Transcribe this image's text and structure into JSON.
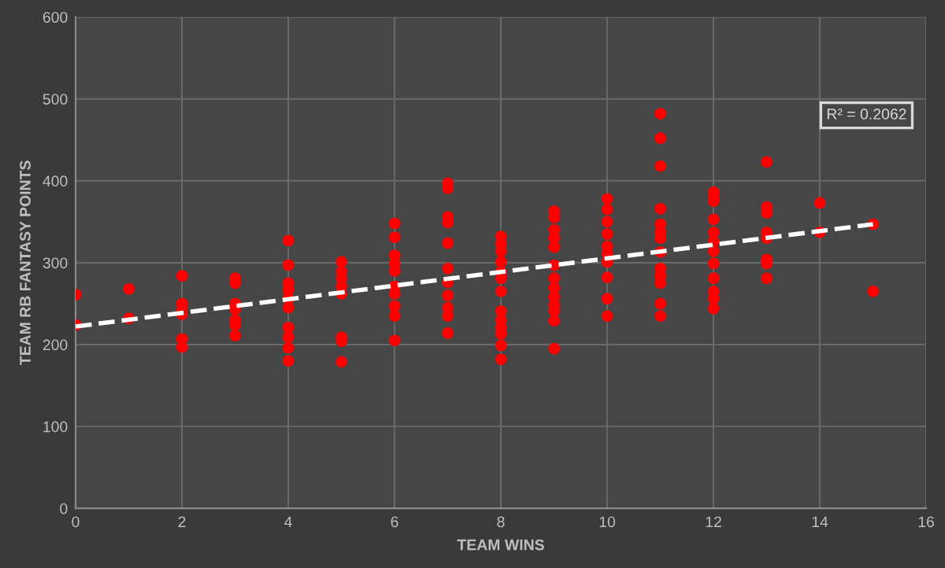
{
  "chart_data": {
    "type": "scatter",
    "xlabel": "TEAM WINS",
    "ylabel": "TEAM RB FANTASY POINTS",
    "xlim": [
      0,
      16
    ],
    "xticks": [
      0,
      2,
      4,
      6,
      8,
      10,
      12,
      14,
      16
    ],
    "ylim": [
      0,
      600
    ],
    "yticks": [
      0,
      100,
      200,
      300,
      400,
      500,
      600
    ],
    "grid": true,
    "marker": "circle",
    "annotations": [
      "R² = 0.2062"
    ],
    "series": [
      {
        "color": "#ff0000",
        "x": [
          0,
          0,
          1,
          1,
          2,
          2,
          2,
          2,
          2,
          2,
          3,
          3,
          3,
          3,
          3,
          3,
          3,
          4,
          4,
          4,
          4,
          4,
          4,
          4,
          4,
          4,
          4,
          5,
          5,
          5,
          5,
          5,
          5,
          5,
          5,
          6,
          6,
          6,
          6,
          6,
          6,
          6,
          6,
          6,
          6,
          7,
          7,
          7,
          7,
          7,
          7,
          7,
          7,
          7,
          7,
          7,
          8,
          8,
          8,
          8,
          8,
          8,
          8,
          8,
          8,
          8,
          8,
          8,
          8,
          9,
          9,
          9,
          9,
          9,
          9,
          9,
          9,
          9,
          9,
          9,
          9,
          9,
          10,
          10,
          10,
          10,
          10,
          10,
          10,
          10,
          10,
          10,
          11,
          11,
          11,
          11,
          11,
          11,
          11,
          11,
          11,
          11,
          11,
          11,
          11,
          12,
          12,
          12,
          12,
          12,
          12,
          12,
          12,
          12,
          12,
          12,
          12,
          13,
          13,
          13,
          13,
          13,
          13,
          13,
          13,
          14,
          14,
          15,
          15
        ],
        "values": [
          261,
          224,
          268,
          232,
          284,
          250,
          242,
          237,
          207,
          197,
          281,
          275,
          250,
          243,
          230,
          224,
          211,
          327,
          297,
          275,
          267,
          256,
          245,
          221,
          209,
          196,
          180,
          301,
          289,
          281,
          271,
          262,
          209,
          204,
          179,
          348,
          331,
          309,
          299,
          290,
          271,
          262,
          247,
          235,
          205,
          397,
          391,
          356,
          349,
          324,
          293,
          276,
          260,
          245,
          235,
          214,
          332,
          323,
          314,
          301,
          289,
          281,
          265,
          241,
          230,
          221,
          213,
          199,
          182,
          363,
          355,
          340,
          330,
          319,
          297,
          281,
          269,
          258,
          248,
          241,
          229,
          195,
          378,
          365,
          350,
          335,
          320,
          311,
          301,
          282,
          256,
          235,
          482,
          452,
          418,
          366,
          347,
          337,
          330,
          313,
          293,
          284,
          275,
          250,
          235,
          386,
          379,
          375,
          353,
          337,
          326,
          314,
          299,
          281,
          265,
          256,
          244,
          423,
          368,
          361,
          337,
          330,
          304,
          299,
          281,
          373,
          337,
          347,
          265
        ]
      },
      {
        "type": "line",
        "color": "#ffffff",
        "line_style": "dashed",
        "marker": "none",
        "x": [
          0,
          15
        ],
        "values": [
          222,
          347
        ]
      }
    ]
  }
}
